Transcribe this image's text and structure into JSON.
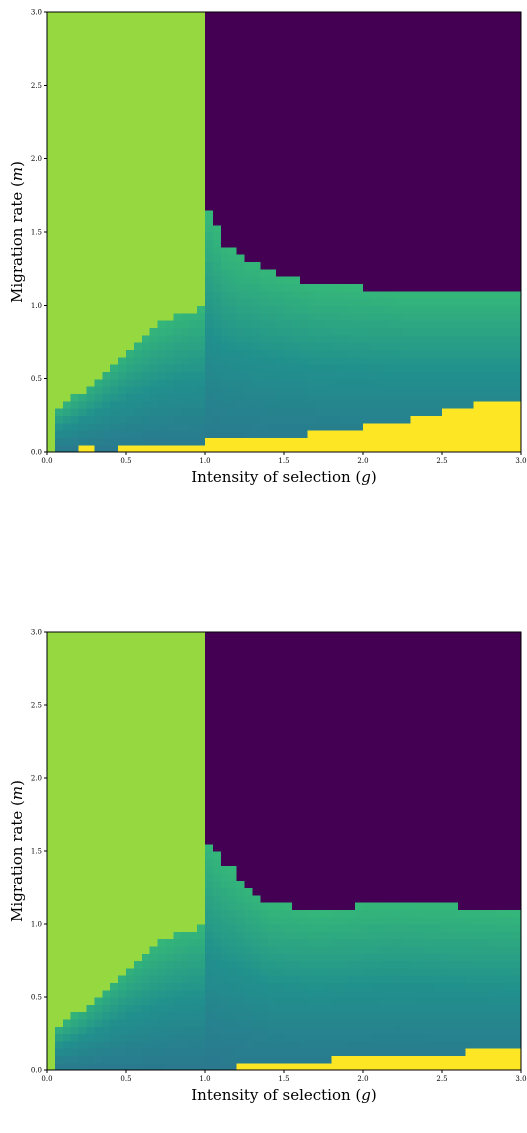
{
  "colors": {
    "region_left": "#95d840",
    "region_top": "#440154",
    "region_low": "#fde725",
    "gradient_light": "#35b779",
    "gradient_dark": "#21908d",
    "gradient_darkest": "#2a788e"
  },
  "chart_data": [
    {
      "type": "heatmap",
      "xlabel": "Intensity of selection (g)",
      "ylabel": "Migration rate (m)",
      "xlim": [
        0,
        3
      ],
      "ylim": [
        0,
        3
      ],
      "xticks": [
        "0.0",
        "0.5",
        "1.0",
        "1.5",
        "2.0",
        "2.5",
        "3.0"
      ],
      "yticks": [
        "0.0",
        "0.5",
        "1.0",
        "1.5",
        "2.0",
        "2.5",
        "3.0"
      ],
      "grid": false,
      "region_boundaries": {
        "left_region_right_edge": [
          [
            0.0,
            0.0
          ],
          [
            0.05,
            0.31
          ],
          [
            0.1,
            0.34
          ],
          [
            0.15,
            0.38
          ],
          [
            0.2,
            0.42
          ],
          [
            0.25,
            0.47
          ],
          [
            0.3,
            0.52
          ],
          [
            0.35,
            0.57
          ],
          [
            0.4,
            0.62
          ],
          [
            0.45,
            0.67
          ],
          [
            0.5,
            0.72
          ],
          [
            0.55,
            0.77
          ],
          [
            0.6,
            0.81
          ],
          [
            0.65,
            0.85
          ],
          [
            0.7,
            0.88
          ],
          [
            0.75,
            0.91
          ],
          [
            0.8,
            0.94
          ],
          [
            0.85,
            0.97
          ],
          [
            0.9,
            0.99
          ],
          [
            1.0,
            1.0
          ],
          [
            3.0,
            1.0
          ]
        ],
        "top_region_lower_edge": [
          [
            1.0,
            1.65
          ],
          [
            1.05,
            1.6
          ],
          [
            1.1,
            1.45
          ],
          [
            1.15,
            1.4
          ],
          [
            1.2,
            1.35
          ],
          [
            1.3,
            1.3
          ],
          [
            1.4,
            1.25
          ],
          [
            1.55,
            1.2
          ],
          [
            1.7,
            1.15
          ],
          [
            2.25,
            1.1
          ],
          [
            3.0,
            1.1
          ]
        ],
        "low_region_upper_edge": [
          [
            0.2,
            0.05
          ],
          [
            0.45,
            0.0
          ],
          [
            0.5,
            0.05
          ],
          [
            1.45,
            0.1
          ],
          [
            1.85,
            0.15
          ],
          [
            2.15,
            0.2
          ],
          [
            2.4,
            0.25
          ],
          [
            2.6,
            0.3
          ],
          [
            2.8,
            0.35
          ],
          [
            3.0,
            0.35
          ]
        ]
      }
    },
    {
      "type": "heatmap",
      "xlabel": "Intensity of selection (g)",
      "ylabel": "Migration rate (m)",
      "xlim": [
        0,
        3
      ],
      "ylim": [
        0,
        3
      ],
      "xticks": [
        "0.0",
        "0.5",
        "1.0",
        "1.5",
        "2.0",
        "2.5",
        "3.0"
      ],
      "yticks": [
        "0.0",
        "0.5",
        "1.0",
        "1.5",
        "2.0",
        "2.5",
        "3.0"
      ],
      "grid": false,
      "region_boundaries": {
        "left_region_right_edge": [
          [
            0.0,
            0.0
          ],
          [
            0.05,
            0.31
          ],
          [
            0.1,
            0.34
          ],
          [
            0.15,
            0.38
          ],
          [
            0.2,
            0.42
          ],
          [
            0.25,
            0.47
          ],
          [
            0.3,
            0.52
          ],
          [
            0.35,
            0.57
          ],
          [
            0.4,
            0.62
          ],
          [
            0.45,
            0.67
          ],
          [
            0.5,
            0.72
          ],
          [
            0.55,
            0.77
          ],
          [
            0.6,
            0.81
          ],
          [
            0.65,
            0.85
          ],
          [
            0.7,
            0.88
          ],
          [
            0.75,
            0.91
          ],
          [
            0.8,
            0.94
          ],
          [
            0.85,
            0.97
          ],
          [
            0.9,
            0.99
          ],
          [
            1.0,
            1.0
          ],
          [
            3.0,
            1.0
          ]
        ],
        "top_region_lower_edge": [
          [
            1.0,
            1.6
          ],
          [
            1.05,
            1.55
          ],
          [
            1.1,
            1.45
          ],
          [
            1.15,
            1.4
          ],
          [
            1.2,
            1.35
          ],
          [
            1.25,
            1.3
          ],
          [
            1.3,
            1.25
          ],
          [
            1.35,
            1.2
          ],
          [
            1.4,
            1.15
          ],
          [
            1.7,
            1.1
          ],
          [
            2.2,
            1.15
          ],
          [
            3.0,
            1.1
          ]
        ],
        "low_region_upper_edge": [
          [
            1.2,
            0.05
          ],
          [
            2.35,
            0.1
          ],
          [
            2.9,
            0.15
          ],
          [
            3.0,
            0.15
          ]
        ]
      }
    }
  ]
}
